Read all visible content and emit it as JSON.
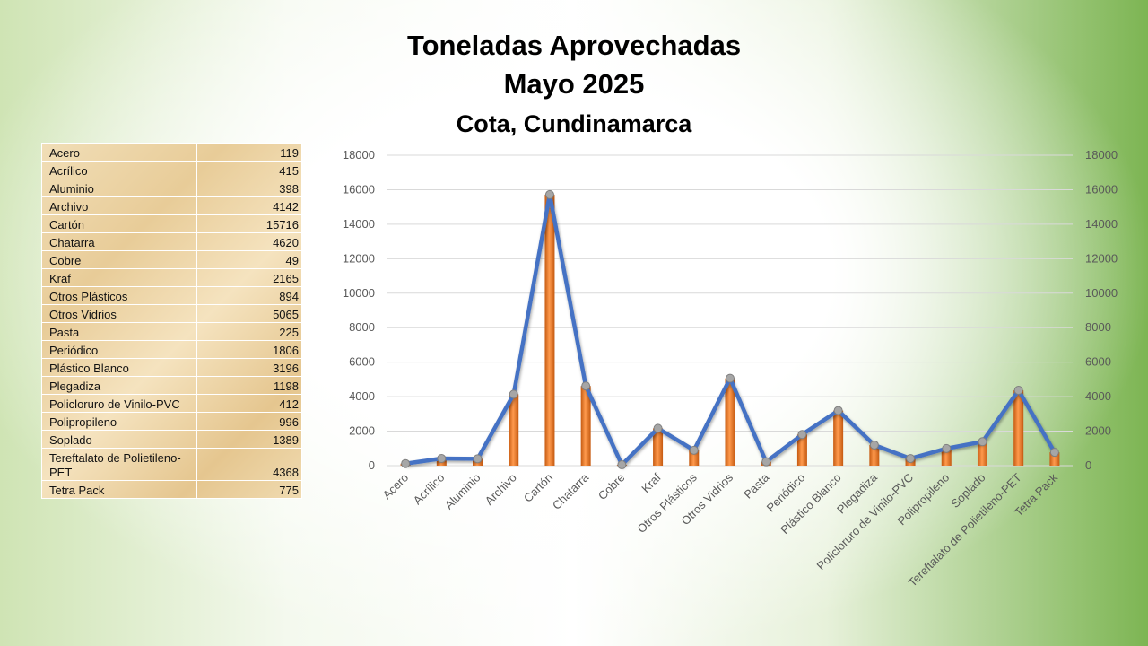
{
  "chart_data": {
    "type": "bar",
    "title": "Toneladas Aprovechadas",
    "subtitle": "Mayo 2025",
    "subtitle2": "Cota, Cundinamarca",
    "categories": [
      "Acero",
      "Acrílico",
      "Aluminio",
      "Archivo",
      "Cartón",
      "Chatarra",
      "Cobre",
      "Kraf",
      "Otros Plásticos",
      "Otros Vidrios",
      "Pasta",
      "Periódico",
      "Plástico Blanco",
      "Plegadiza",
      "Policloruro de Vinilo-PVC",
      "Polipropileno",
      "Soplado",
      "Tereftalato de Polietileno-PET",
      "Tetra Pack"
    ],
    "series": [
      {
        "type": "bar",
        "color": "#ed7d31",
        "values": [
          119,
          415,
          398,
          4142,
          15716,
          4620,
          49,
          2165,
          894,
          5065,
          225,
          1806,
          3196,
          1198,
          412,
          996,
          1389,
          4368,
          775
        ]
      },
      {
        "type": "line",
        "color": "#4472c4",
        "values": [
          119,
          415,
          398,
          4142,
          15716,
          4620,
          49,
          2165,
          894,
          5065,
          225,
          1806,
          3196,
          1198,
          412,
          996,
          1389,
          4368,
          775
        ]
      }
    ],
    "ylim": [
      0,
      18000
    ],
    "yticks": [
      "0",
      "2000",
      "4000",
      "6000",
      "8000",
      "10000",
      "12000",
      "14000",
      "16000",
      "18000"
    ],
    "secondary_axis": true,
    "grid": true
  },
  "table": {
    "rows": [
      {
        "label": "Acero",
        "value": "119"
      },
      {
        "label": "Acrílico",
        "value": "415"
      },
      {
        "label": "Aluminio",
        "value": "398"
      },
      {
        "label": "Archivo",
        "value": "4142"
      },
      {
        "label": "Cartón",
        "value": "15716"
      },
      {
        "label": "Chatarra",
        "value": "4620"
      },
      {
        "label": "Cobre",
        "value": "49"
      },
      {
        "label": "Kraf",
        "value": "2165"
      },
      {
        "label": "Otros Plásticos",
        "value": "894"
      },
      {
        "label": "Otros Vidrios",
        "value": "5065"
      },
      {
        "label": "Pasta",
        "value": "225"
      },
      {
        "label": "Periódico",
        "value": "1806"
      },
      {
        "label": "Plástico Blanco",
        "value": "3196"
      },
      {
        "label": "Plegadiza",
        "value": "1198"
      },
      {
        "label": "Policloruro de Vinilo-PVC",
        "value": "412"
      },
      {
        "label": "Polipropileno",
        "value": "996"
      },
      {
        "label": "Soplado",
        "value": "1389"
      },
      {
        "label": "Tereftalato de Polietileno-PET",
        "value": "4368"
      },
      {
        "label": "Tetra Pack",
        "value": "775"
      }
    ]
  }
}
